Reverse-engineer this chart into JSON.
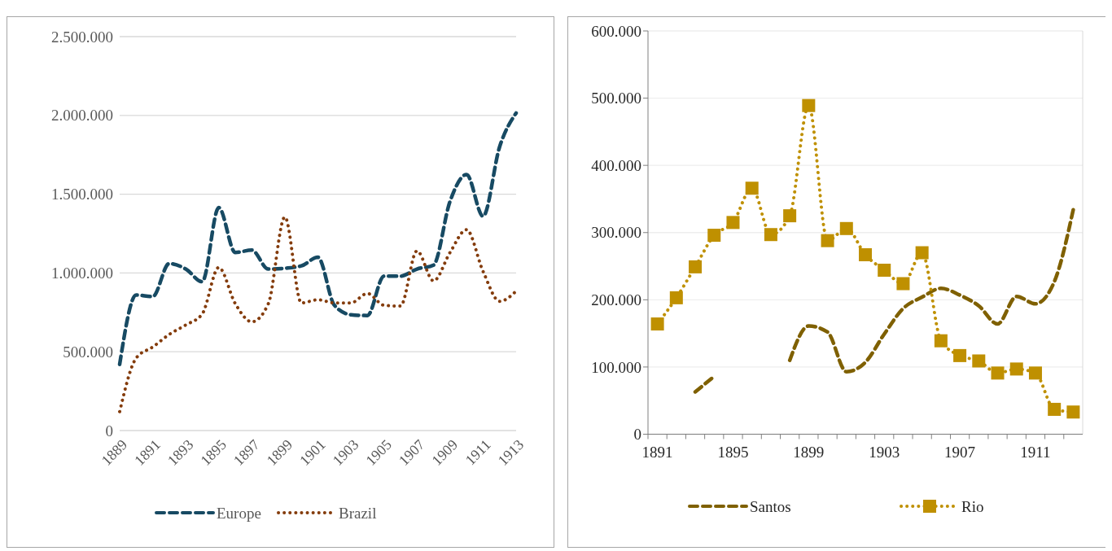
{
  "chart_data": [
    {
      "type": "line",
      "categories": [
        "1889",
        null,
        "1891",
        null,
        "1893",
        null,
        "1895",
        null,
        "1897",
        null,
        "1899",
        null,
        "1901",
        null,
        "1903",
        null,
        "1905",
        null,
        "1907",
        null,
        "1909",
        null,
        "1911",
        null,
        "1913"
      ],
      "series": [
        {
          "name": "Europe",
          "color": "#174a63",
          "line_style": "dashed",
          "marker": "none",
          "values": [
            420000,
            860000,
            850000,
            1060000,
            1025000,
            945000,
            1415000,
            1130000,
            1145000,
            1025000,
            1030000,
            1045000,
            1100000,
            795000,
            735000,
            730000,
            980000,
            980000,
            1025000,
            1050000,
            1455000,
            1625000,
            1360000,
            1800000,
            2015000
          ]
        },
        {
          "name": "Brazil",
          "color": "#843c0c",
          "line_style": "dotted",
          "marker": "none",
          "values": [
            120000,
            460000,
            530000,
            610000,
            670000,
            740000,
            1035000,
            805000,
            690000,
            805000,
            1355000,
            810000,
            830000,
            810000,
            810000,
            870000,
            795000,
            790000,
            1140000,
            950000,
            1130000,
            1275000,
            1010000,
            820000,
            885000
          ]
        }
      ],
      "ylim": [
        0,
        2500000
      ],
      "yticks": [
        0,
        {
          "value": 500000,
          "label": "500.000"
        },
        {
          "value": 1000000,
          "label": "1.000.000"
        },
        {
          "value": 1500000,
          "label": "1.500.000"
        },
        {
          "value": 2000000,
          "label": "2.000.000"
        },
        {
          "value": 2500000,
          "label": "2.500.000"
        }
      ],
      "grid": "y",
      "legend": "bottom"
    },
    {
      "type": "line",
      "categories": [
        "1891",
        null,
        null,
        null,
        "1895",
        null,
        null,
        null,
        "1899",
        null,
        null,
        null,
        "1903",
        null,
        null,
        null,
        "1907",
        null,
        null,
        null,
        "1911",
        null,
        null
      ],
      "series": [
        {
          "name": "Santos",
          "color": "#7f6000",
          "line_style": "dashed",
          "marker": "none",
          "values": [
            null,
            null,
            63000,
            86000,
            null,
            null,
            null,
            110000,
            161000,
            152000,
            93000,
            107000,
            149000,
            187000,
            204000,
            217000,
            207000,
            191000,
            164000,
            205000,
            194000,
            227000,
            334000
          ]
        },
        {
          "name": "Rio",
          "color": "#bf9000",
          "line_style": "dotted",
          "marker": "square",
          "values": [
            164000,
            203000,
            249000,
            296000,
            315000,
            366000,
            297000,
            325000,
            489000,
            288000,
            306000,
            267000,
            244000,
            224000,
            270000,
            139000,
            117000,
            109000,
            91000,
            97000,
            91000,
            37000,
            33000
          ]
        }
      ],
      "ylim": [
        0,
        600000
      ],
      "yticks": [
        0,
        {
          "value": 100000,
          "label": "100.000"
        },
        {
          "value": 200000,
          "label": "200.000"
        },
        {
          "value": 300000,
          "label": "300.000"
        },
        {
          "value": 400000,
          "label": "400.000"
        },
        {
          "value": 500000,
          "label": "500.000"
        },
        {
          "value": 600000,
          "label": "600.000"
        }
      ],
      "grid": "y",
      "legend": "bottom"
    }
  ]
}
